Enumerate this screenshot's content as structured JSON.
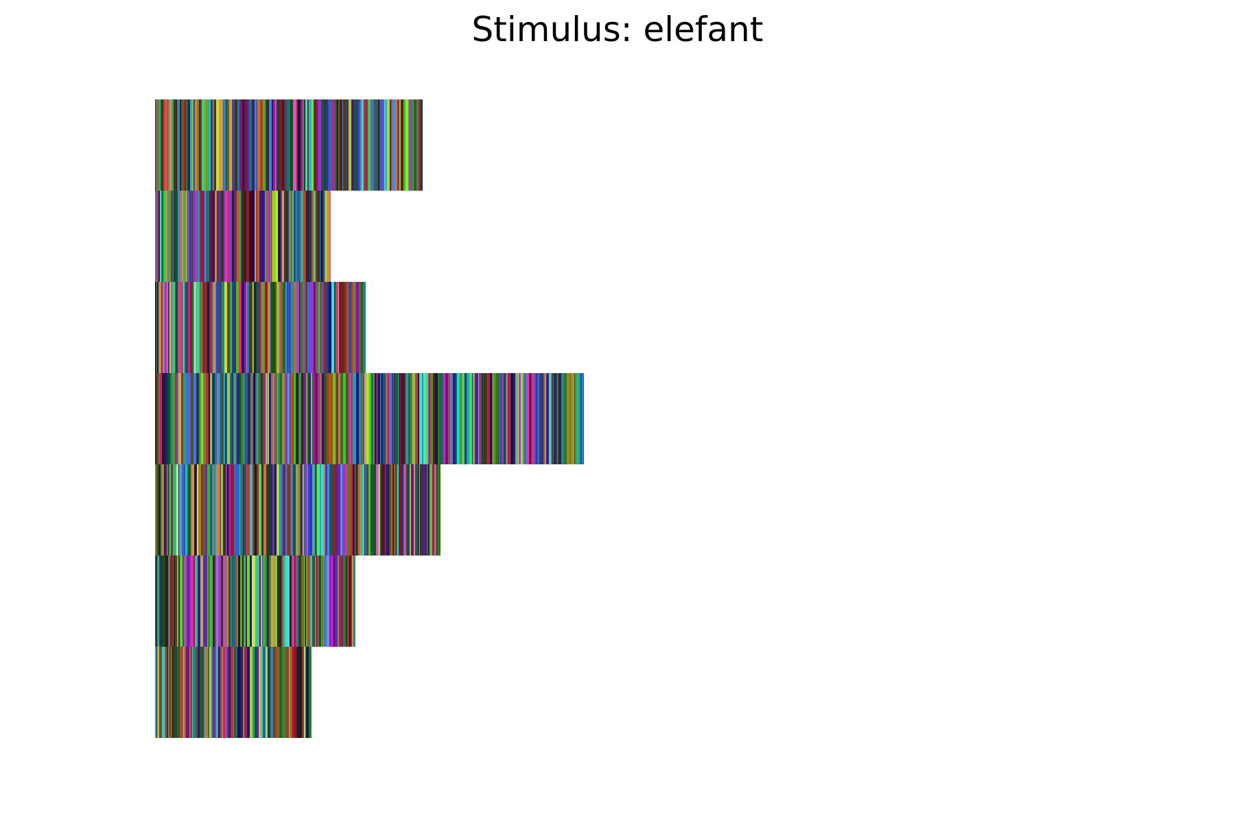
{
  "chart_data": {
    "type": "heatmap",
    "title": "Stimulus: elefant",
    "xlabel": "",
    "ylabel": "",
    "axes_visible": false,
    "grid": false,
    "legend": "none",
    "rows": [
      {
        "index": 0,
        "length": 390,
        "seed": 11
      },
      {
        "index": 1,
        "length": 256,
        "seed": 23
      },
      {
        "index": 2,
        "length": 307,
        "seed": 37
      },
      {
        "index": 3,
        "length": 625,
        "seed": 41
      },
      {
        "index": 4,
        "length": 416,
        "seed": 53
      },
      {
        "index": 5,
        "length": 292,
        "seed": 67
      },
      {
        "index": 6,
        "length": 228,
        "seed": 79
      }
    ],
    "x_max": 1600
  }
}
